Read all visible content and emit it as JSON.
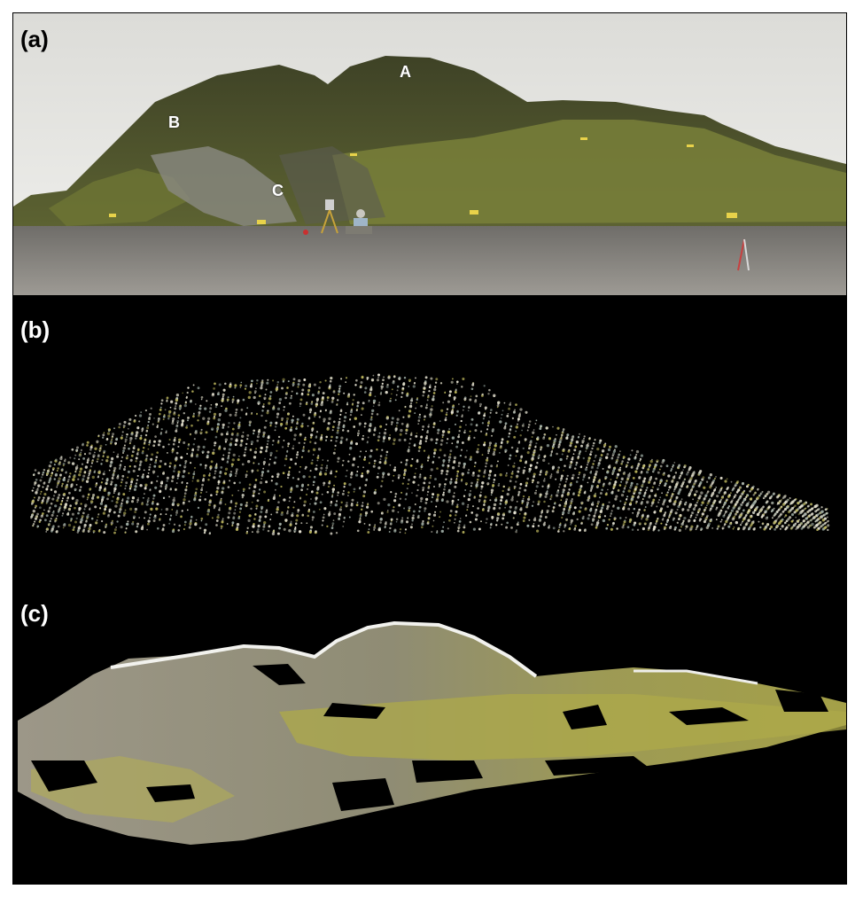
{
  "figure": {
    "panels": [
      {
        "label": "(a)",
        "kind": "photograph",
        "feature_labels": [
          "A",
          "B",
          "C"
        ]
      },
      {
        "label": "(b)",
        "kind": "point-cloud"
      },
      {
        "label": "(c)",
        "kind": "textured-model"
      }
    ],
    "colors": {
      "background": "#000000",
      "sky": "#e9e9e6",
      "vegetation": "#6f7532",
      "rock": "#4a4f2c",
      "beach": "#8d8a83",
      "points_light": "#d9d6c2",
      "points_yellow": "#b6b05a",
      "model_grey": "#9a9585",
      "model_green": "#a8a548"
    }
  }
}
